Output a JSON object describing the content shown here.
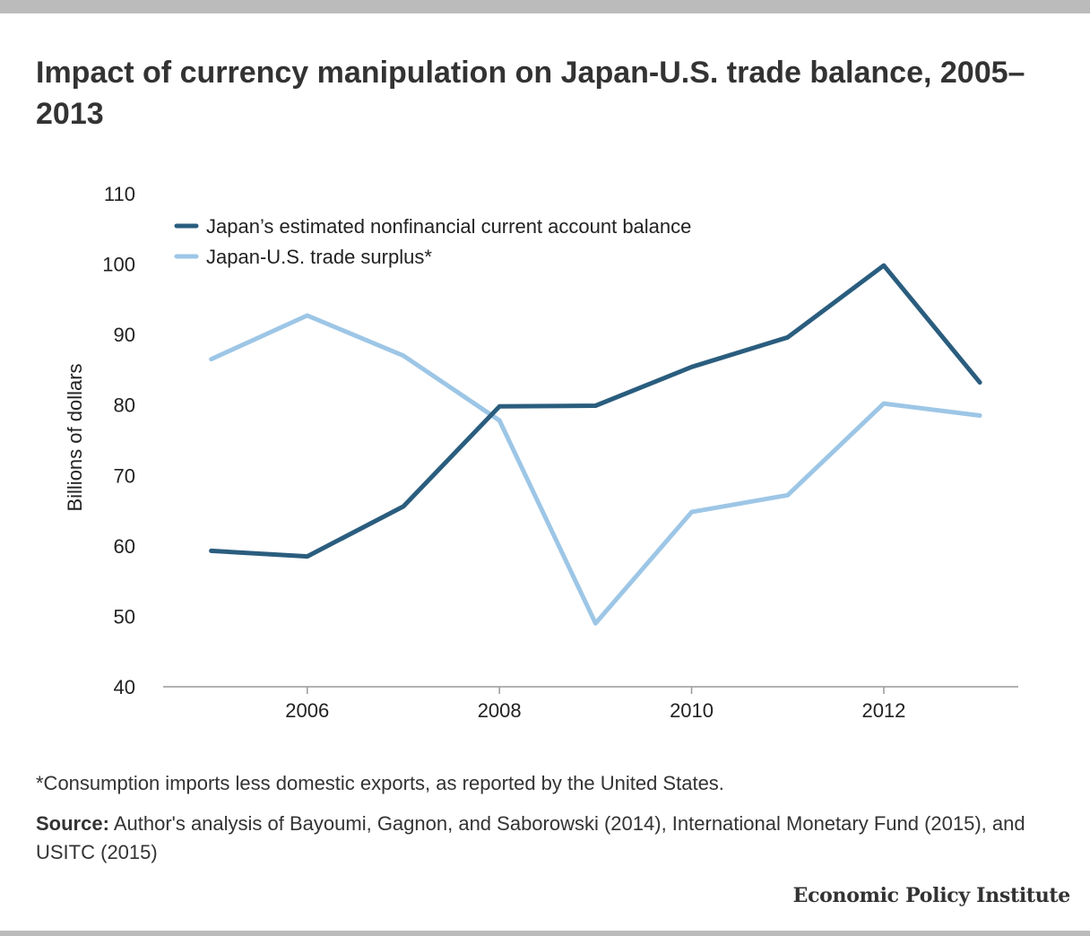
{
  "title": "Impact of currency manipulation on Japan-U.S. trade balance, 2005–2013",
  "note": "*Consumption imports less domestic exports, as reported by the United States.",
  "source_label": "Source:",
  "source_text": " Author's analysis of Bayoumi, Gagnon, and Saborowski (2014), International Monetary Fund (2015), and USITC (2015)",
  "brand": "Economic Policy Institute",
  "chart_data": {
    "type": "line",
    "x": [
      2005,
      2006,
      2007,
      2008,
      2009,
      2010,
      2011,
      2012,
      2013
    ],
    "xticks": [
      "2006",
      "2008",
      "2010",
      "2012"
    ],
    "xtick_values": [
      2006,
      2008,
      2010,
      2012
    ],
    "yticks": [
      "40",
      "50",
      "60",
      "70",
      "80",
      "90",
      "100",
      "110"
    ],
    "ylim": [
      40,
      110
    ],
    "xlim": [
      2004.5,
      2013.4
    ],
    "ylabel": "Billions of dollars",
    "xlabel": "",
    "grid": false,
    "legend_position": "top-left",
    "series": [
      {
        "name": "Japan’s estimated nonfinancial current account balance",
        "color": "#2a5d7e",
        "values": [
          59.3,
          58.5,
          65.6,
          79.8,
          79.9,
          85.4,
          89.6,
          99.8,
          83.2
        ]
      },
      {
        "name": "Japan-U.S. trade surplus*",
        "color": "#9dc6e6",
        "values": [
          86.5,
          92.7,
          87.0,
          77.8,
          49.0,
          64.8,
          67.2,
          80.2,
          78.5
        ]
      }
    ]
  }
}
